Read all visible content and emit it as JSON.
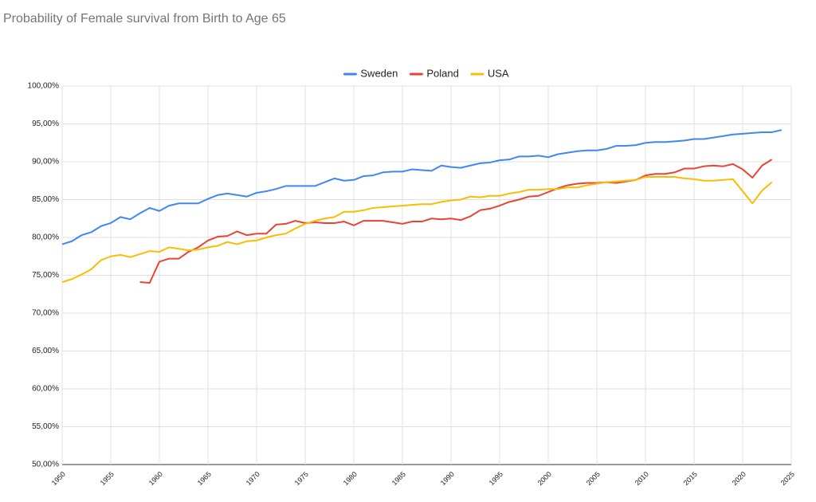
{
  "chart_data": {
    "type": "line",
    "title": "Probability of Female survival from Birth to Age 65",
    "x": [
      1950,
      1951,
      1952,
      1953,
      1954,
      1955,
      1956,
      1957,
      1958,
      1959,
      1960,
      1961,
      1962,
      1963,
      1964,
      1965,
      1966,
      1967,
      1968,
      1969,
      1970,
      1971,
      1972,
      1973,
      1974,
      1975,
      1976,
      1977,
      1978,
      1979,
      1980,
      1981,
      1982,
      1983,
      1984,
      1985,
      1986,
      1987,
      1988,
      1989,
      1990,
      1991,
      1992,
      1993,
      1994,
      1995,
      1996,
      1997,
      1998,
      1999,
      2000,
      2001,
      2002,
      2003,
      2004,
      2005,
      2006,
      2007,
      2008,
      2009,
      2010,
      2011,
      2012,
      2013,
      2014,
      2015,
      2016,
      2017,
      2018,
      2019,
      2020,
      2021,
      2022,
      2023,
      2024
    ],
    "series": [
      {
        "name": "Sweden",
        "color": "#4285f4",
        "values": [
          79.1,
          79.5,
          80.3,
          80.7,
          81.5,
          81.9,
          82.7,
          82.4,
          83.2,
          83.9,
          83.5,
          84.2,
          84.5,
          84.5,
          84.5,
          85.1,
          85.6,
          85.8,
          85.6,
          85.4,
          85.9,
          86.1,
          86.4,
          86.8,
          86.8,
          86.8,
          86.8,
          87.3,
          87.8,
          87.5,
          87.6,
          88.1,
          88.2,
          88.6,
          88.7,
          88.7,
          89.0,
          88.9,
          88.8,
          89.5,
          89.3,
          89.2,
          89.5,
          89.8,
          89.9,
          90.2,
          90.3,
          90.7,
          90.7,
          90.8,
          90.6,
          91.0,
          91.2,
          91.4,
          91.5,
          91.5,
          91.7,
          92.1,
          92.1,
          92.2,
          92.5,
          92.6,
          92.6,
          92.7,
          92.8,
          93.0,
          93.0,
          93.2,
          93.4,
          93.6,
          93.7,
          93.8,
          93.9,
          93.9,
          94.2
        ]
      },
      {
        "name": "Poland",
        "color": "#ea4335",
        "values": [
          null,
          null,
          null,
          null,
          null,
          null,
          null,
          null,
          74.1,
          74.0,
          76.8,
          77.2,
          77.2,
          78.1,
          78.7,
          79.6,
          80.1,
          80.2,
          80.8,
          80.3,
          80.5,
          80.5,
          81.7,
          81.8,
          82.2,
          81.9,
          82.0,
          81.9,
          81.9,
          82.1,
          81.6,
          82.2,
          82.2,
          82.2,
          82.0,
          81.8,
          82.1,
          82.1,
          82.5,
          82.4,
          82.5,
          82.3,
          82.8,
          83.6,
          83.8,
          84.2,
          84.7,
          85.0,
          85.4,
          85.5,
          86.0,
          86.5,
          86.9,
          87.1,
          87.2,
          87.2,
          87.3,
          87.2,
          87.4,
          87.6,
          88.2,
          88.4,
          88.4,
          88.6,
          89.1,
          89.1,
          89.4,
          89.5,
          89.4,
          89.7,
          89.0,
          87.9,
          89.5,
          90.3,
          null
        ]
      },
      {
        "name": "USA",
        "color": "#fbbc04",
        "values": [
          74.1,
          74.5,
          75.1,
          75.8,
          77.0,
          77.5,
          77.7,
          77.4,
          77.8,
          78.2,
          78.1,
          78.7,
          78.5,
          78.3,
          78.4,
          78.7,
          78.9,
          79.4,
          79.1,
          79.5,
          79.6,
          80.0,
          80.3,
          80.5,
          81.2,
          81.8,
          82.2,
          82.5,
          82.7,
          83.4,
          83.4,
          83.6,
          83.9,
          84.0,
          84.1,
          84.2,
          84.3,
          84.4,
          84.4,
          84.7,
          84.9,
          85.0,
          85.4,
          85.3,
          85.5,
          85.5,
          85.8,
          86.0,
          86.3,
          86.3,
          86.4,
          86.4,
          86.6,
          86.6,
          86.9,
          87.1,
          87.3,
          87.4,
          87.5,
          87.6,
          88.0,
          88.0,
          88.0,
          88.0,
          87.8,
          87.7,
          87.5,
          87.5,
          87.6,
          87.7,
          86.1,
          84.5,
          86.2,
          87.3,
          null
        ]
      }
    ],
    "xlim": [
      1950,
      2025
    ],
    "xticks": [
      1950,
      1955,
      1960,
      1965,
      1970,
      1975,
      1980,
      1985,
      1990,
      1995,
      2000,
      2005,
      2010,
      2015,
      2020,
      2025
    ],
    "ylim": [
      50,
      100
    ],
    "yticks": [
      {
        "value": 50,
        "label": "50,00%"
      },
      {
        "value": 55,
        "label": "55,00%"
      },
      {
        "value": 60,
        "label": "60,00%"
      },
      {
        "value": 65,
        "label": "65,00%"
      },
      {
        "value": 70,
        "label": "70,00%"
      },
      {
        "value": 75,
        "label": "75,00%"
      },
      {
        "value": 80,
        "label": "80,00%"
      },
      {
        "value": 85,
        "label": "85,00%"
      },
      {
        "value": 90,
        "label": "90,00%"
      },
      {
        "value": 95,
        "label": "95,00%"
      },
      {
        "value": 100,
        "label": "100,00%"
      }
    ],
    "grid": true,
    "legend": "top"
  }
}
